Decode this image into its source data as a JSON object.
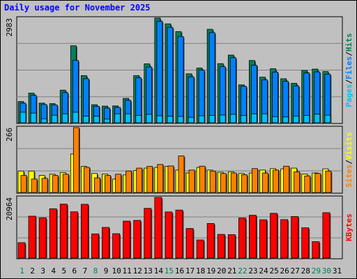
{
  "page": {
    "title": "Daily usage for November 2025"
  },
  "colors": {
    "background": "#c0c0c0",
    "hits": "#00805c",
    "files": "#0080ff",
    "pages": "#00c0ff",
    "visits": "#ffff00",
    "sites": "#ff8000",
    "kbytes": "#ff0000",
    "weekend_label": "#00805c"
  },
  "chart_data": [
    {
      "type": "bar",
      "name": "hits-files-pages",
      "ytick_label": "2983",
      "ymax": 2983,
      "legend": [
        {
          "label": "Pages",
          "color": "#00c0ff"
        },
        {
          "label": "/",
          "color": "#000000"
        },
        {
          "label": "Files",
          "color": "#0080ff"
        },
        {
          "label": "/",
          "color": "#000000"
        },
        {
          "label": "Hits",
          "color": "#00805c"
        }
      ],
      "categories": [
        "1",
        "2",
        "3",
        "4",
        "5",
        "6",
        "7",
        "8",
        "9",
        "10",
        "11",
        "12",
        "13",
        "14",
        "15",
        "16",
        "17",
        "18",
        "19",
        "20",
        "21",
        "22",
        "23",
        "24",
        "25",
        "26",
        "27",
        "28",
        "29",
        "30",
        "31"
      ],
      "series": [
        {
          "key": "hits",
          "values": [
            605,
            845,
            560,
            545,
            930,
            2195,
            1345,
            515,
            475,
            480,
            695,
            1345,
            1680,
            2985,
            2820,
            2600,
            1395,
            1560,
            2665,
            1685,
            1930,
            1080,
            1775,
            1300,
            1540,
            1255,
            1125,
            1490,
            1530,
            1460,
            0
          ]
        },
        {
          "key": "files",
          "values": [
            560,
            780,
            520,
            510,
            860,
            1780,
            1255,
            470,
            420,
            440,
            640,
            1280,
            1590,
            2895,
            2720,
            2460,
            1310,
            1500,
            2570,
            1600,
            1855,
            1040,
            1640,
            1225,
            1445,
            1180,
            1050,
            1420,
            1450,
            1385,
            0
          ]
        },
        {
          "key": "pages",
          "values": [
            300,
            275,
            115,
            215,
            255,
            300,
            190,
            185,
            105,
            255,
            255,
            210,
            240,
            200,
            185,
            180,
            155,
            200,
            210,
            220,
            240,
            205,
            255,
            255,
            175,
            165,
            190,
            210,
            245,
            215,
            0
          ]
        }
      ]
    },
    {
      "type": "bar",
      "name": "visits-sites",
      "ytick_label": "266",
      "ymax": 266,
      "legend": [
        {
          "label": "Sites",
          "color": "#ff8000"
        },
        {
          "label": "/",
          "color": "#000000"
        },
        {
          "label": "Visits",
          "color": "#ffff00"
        }
      ],
      "categories": [
        "1",
        "2",
        "3",
        "4",
        "5",
        "6",
        "7",
        "8",
        "9",
        "10",
        "11",
        "12",
        "13",
        "14",
        "15",
        "16",
        "17",
        "18",
        "19",
        "20",
        "21",
        "22",
        "23",
        "24",
        "25",
        "26",
        "27",
        "28",
        "29",
        "30",
        "31"
      ],
      "series": [
        {
          "key": "visits",
          "values": [
            88,
            88,
            70,
            75,
            82,
            158,
            107,
            78,
            76,
            55,
            72,
            90,
            100,
            103,
            107,
            92,
            80,
            103,
            92,
            83,
            85,
            78,
            80,
            92,
            98,
            97,
            100,
            76,
            80,
            97,
            0
          ]
        },
        {
          "key": "sites",
          "values": [
            70,
            55,
            58,
            70,
            75,
            266,
            103,
            60,
            70,
            75,
            88,
            100,
            107,
            115,
            109,
            150,
            92,
            108,
            88,
            78,
            80,
            73,
            98,
            80,
            92,
            108,
            85,
            68,
            78,
            88,
            0
          ]
        }
      ]
    },
    {
      "type": "bar",
      "name": "kbytes",
      "ytick_label": "20964",
      "ymax": 20964,
      "legend": [
        {
          "label": "KBytes",
          "color": "#ff0000"
        }
      ],
      "categories": [
        "1",
        "2",
        "3",
        "4",
        "5",
        "6",
        "7",
        "8",
        "9",
        "10",
        "11",
        "12",
        "13",
        "14",
        "15",
        "16",
        "17",
        "18",
        "19",
        "20",
        "21",
        "22",
        "23",
        "24",
        "25",
        "26",
        "27",
        "28",
        "29",
        "30",
        "31"
      ],
      "series": [
        {
          "key": "kbytes",
          "values": [
            5330,
            14475,
            13920,
            17040,
            18640,
            15990,
            18580,
            8360,
            10600,
            8420,
            12770,
            13010,
            17180,
            20964,
            15940,
            16580,
            10230,
            6260,
            11950,
            8180,
            8100,
            13850,
            14790,
            13240,
            15460,
            13280,
            14340,
            10470,
            5680,
            15690,
            0
          ]
        }
      ]
    }
  ]
}
